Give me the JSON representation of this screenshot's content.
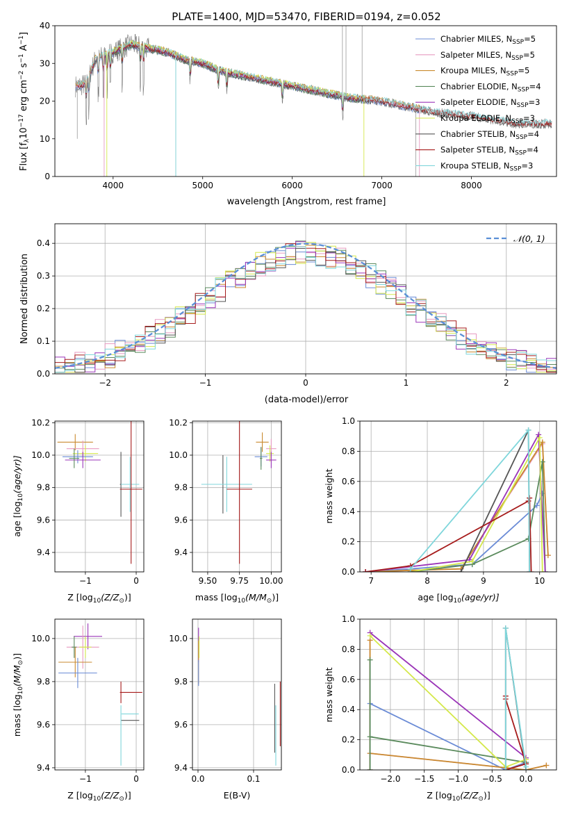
{
  "figure_title": "PLATE=1400, MJD=53470, FIBERID=0194, z=0.052",
  "palette": {
    "Chabrier MILES": "#6a8bd6",
    "Salpeter MILES": "#e79ac0",
    "Kroupa MILES": "#c98a2e",
    "Chabrier ELODIE": "#5a8a5c",
    "Salpeter ELODIE": "#9a34b8",
    "Kroupa ELODIE": "#d4e84a",
    "Chabrier STELIB": "#555555",
    "Salpeter STELIB": "#a61b1b",
    "Kroupa STELIB": "#7fd6db",
    "orange": "#e07b28",
    "normal": "#5a8fd6"
  },
  "chart_data": [
    {
      "id": "spectrum",
      "type": "line",
      "title": "",
      "xlabel": "wavelength [Angstrom, rest frame]",
      "ylabel": "Flux [f",
      "ylabel_sub": "λ",
      "ylabel_rest": "10",
      "ylabel_exp": "−17",
      "ylabel_tail": " erg cm",
      "ylabel_exp2": "−2",
      "ylabel_tail2": " s",
      "ylabel_exp3": "−1",
      "ylabel_tail3": " A",
      "ylabel_exp4": "−1",
      "ylabel_end": "]",
      "xlim": [
        3350,
        8950
      ],
      "ylim": [
        0,
        40
      ],
      "xticks": [
        4000,
        5000,
        6000,
        7000,
        8000
      ],
      "yticks": [
        0,
        10,
        20,
        30,
        40
      ],
      "grid": false,
      "legend_position": "top-right",
      "series": [
        {
          "name": "Chabrier MILES, N",
          "sub": "SSP",
          "tail": "=5",
          "color_key": "Chabrier MILES"
        },
        {
          "name": "Salpeter MILES, N",
          "sub": "SSP",
          "tail": "=5",
          "color_key": "Salpeter MILES"
        },
        {
          "name": "Kroupa MILES, N",
          "sub": "SSP",
          "tail": "=5",
          "color_key": "Kroupa MILES"
        },
        {
          "name": "Chabrier ELODIE, N",
          "sub": "SSP",
          "tail": "=4",
          "color_key": "Chabrier ELODIE"
        },
        {
          "name": "Salpeter ELODIE, N",
          "sub": "SSP",
          "tail": "=3",
          "color_key": "Salpeter ELODIE"
        },
        {
          "name": "Kroupa ELODIE, N",
          "sub": "SSP",
          "tail": "=3",
          "color_key": "Kroupa ELODIE"
        },
        {
          "name": "Chabrier STELIB, N",
          "sub": "SSP",
          "tail": "=4",
          "color_key": "Chabrier STELIB"
        },
        {
          "name": "Salpeter STELIB, N",
          "sub": "SSP",
          "tail": "=4",
          "color_key": "Salpeter STELIB"
        },
        {
          "name": "Kroupa STELIB, N",
          "sub": "SSP",
          "tail": "=3",
          "color_key": "Kroupa STELIB"
        }
      ],
      "continuum": [
        [
          3600,
          24
        ],
        [
          3700,
          24.5
        ],
        [
          3800,
          31
        ],
        [
          3900,
          32
        ],
        [
          4000,
          33
        ],
        [
          4100,
          34
        ],
        [
          4200,
          35
        ],
        [
          4400,
          34
        ],
        [
          4600,
          33
        ],
        [
          4800,
          31
        ],
        [
          5000,
          30
        ],
        [
          5200,
          28
        ],
        [
          5500,
          26.5
        ],
        [
          5800,
          25
        ],
        [
          6000,
          24
        ],
        [
          6300,
          22.5
        ],
        [
          6600,
          21
        ],
        [
          7000,
          20
        ],
        [
          7400,
          18
        ],
        [
          7600,
          17
        ],
        [
          8000,
          16
        ],
        [
          8500,
          14
        ]
      ],
      "model_ranges": {
        "MILES": [
          3580,
          7420
        ],
        "ELODIE": [
          3900,
          6800
        ],
        "STELIB": [
          3600,
          8900
        ]
      },
      "absorption_lines": [
        3700,
        3730,
        3835,
        3890,
        3934,
        3969,
        4102,
        4305,
        4340,
        4861,
        5175,
        5270,
        5890,
        6563
      ]
    },
    {
      "id": "residuals",
      "type": "bar",
      "title": "",
      "xlabel": "(data-model)/error",
      "ylabel": "Normed distribution",
      "xlim": [
        -2.5,
        2.5
      ],
      "ylim": [
        0,
        0.46
      ],
      "xticks": [
        -2,
        -1,
        0,
        1,
        2
      ],
      "yticks": [
        0.0,
        0.1,
        0.2,
        0.3,
        0.4
      ],
      "grid": true,
      "legend_position": "top-right",
      "legend_label": "𝒩(0, 1)",
      "bin_width": 0.1,
      "bin_start": -2.5,
      "series_colors": [
        "Chabrier MILES",
        "Salpeter MILES",
        "Kroupa MILES",
        "Chabrier ELODIE",
        "Salpeter ELODIE",
        "Kroupa ELODIE",
        "Chabrier STELIB",
        "Salpeter STELIB",
        "Kroupa STELIB"
      ]
    },
    {
      "id": "age_vs_Z",
      "type": "scatter",
      "xlabel": "Z [log",
      "xlabel_sub": "10",
      "xlabel_mid": "(Z/Z",
      "xlabel_sub2": "⊙",
      "xlabel_end": ")]",
      "ylabel": "age  [log",
      "ylabel_sub": "10",
      "ylabel_end": "(age/yr)]",
      "xlim": [
        -1.6,
        0.15
      ],
      "ylim": [
        9.28,
        10.21
      ],
      "xticks": [
        -1,
        0
      ],
      "yticks": [
        9.4,
        9.6,
        9.8,
        10.0,
        10.2
      ],
      "grid": true,
      "points": [
        {
          "c": "Kroupa MILES",
          "x": -1.2,
          "y": 10.08,
          "xe": 0.35,
          "ye": 0.05
        },
        {
          "c": "Salpeter MILES",
          "x": -1.05,
          "y": 10.04,
          "xe": 0.32,
          "ye": 0.05
        },
        {
          "c": "Kroupa ELODIE",
          "x": -1.0,
          "y": 10.01,
          "xe": 0.25,
          "ye": 0.05
        },
        {
          "c": "Chabrier MILES",
          "x": -1.15,
          "y": 9.99,
          "xe": 0.3,
          "ye": 0.04
        },
        {
          "c": "Salpeter ELODIE",
          "x": -1.05,
          "y": 9.97,
          "xe": 0.35,
          "ye": 0.05
        },
        {
          "c": "Chabrier ELODIE",
          "x": -1.22,
          "y": 9.98,
          "xe": 0.1,
          "ye": 0.06
        },
        {
          "c": "Chabrier STELIB",
          "x": -0.3,
          "y": 9.82,
          "xe": 0.02,
          "ye": 0.2
        },
        {
          "c": "Kroupa STELIB",
          "x": -0.12,
          "y": 9.82,
          "xe": 0.18,
          "ye": 0.17
        },
        {
          "c": "Salpeter STELIB",
          "x": -0.1,
          "y": 9.79,
          "xe": 0.22,
          "ye": 0.46
        }
      ]
    },
    {
      "id": "age_vs_mass",
      "type": "scatter",
      "xlabel": "mass [log",
      "xlabel_sub": "10",
      "xlabel_mid": "(M/M",
      "xlabel_sub2": "⊙",
      "xlabel_end": ")]",
      "xlim": [
        9.38,
        10.08
      ],
      "ylim": [
        9.28,
        10.21
      ],
      "xticks": [
        9.5,
        9.75,
        10.0
      ],
      "xtick_labels": [
        "9.50",
        "9.75",
        "10.00"
      ],
      "yticks": [
        9.4,
        9.6,
        9.8,
        10.0,
        10.2
      ],
      "grid": true,
      "points": [
        {
          "c": "Kroupa MILES",
          "x": 9.93,
          "y": 10.08,
          "xe": 0.05,
          "ye": 0.06
        },
        {
          "c": "Salpeter MILES",
          "x": 10.0,
          "y": 10.04,
          "xe": 0.04,
          "ye": 0.06
        },
        {
          "c": "Kroupa ELODIE",
          "x": 9.99,
          "y": 10.01,
          "xe": 0.03,
          "ye": 0.05
        },
        {
          "c": "Chabrier MILES",
          "x": 9.92,
          "y": 9.99,
          "xe": 0.05,
          "ye": 0.06
        },
        {
          "c": "Salpeter ELODIE",
          "x": 10.0,
          "y": 9.97,
          "xe": 0.04,
          "ye": 0.05
        },
        {
          "c": "Chabrier ELODIE",
          "x": 9.92,
          "y": 9.98,
          "xe": 0.01,
          "ye": 0.07
        },
        {
          "c": "Chabrier STELIB",
          "x": 9.62,
          "y": 9.82,
          "xe": 0.14,
          "ye": 0.18
        },
        {
          "c": "Kroupa STELIB",
          "x": 9.65,
          "y": 9.82,
          "xe": 0.2,
          "ye": 0.17
        },
        {
          "c": "Salpeter STELIB",
          "x": 9.75,
          "y": 9.79,
          "xe": 0.1,
          "ye": 0.46
        }
      ]
    },
    {
      "id": "mw_vs_age",
      "type": "line",
      "xlabel": "age  [log",
      "xlabel_sub": "10",
      "xlabel_end": "(age/yr)]",
      "ylabel": "mass weight",
      "xlim": [
        6.8,
        10.3
      ],
      "ylim": [
        0,
        1.0
      ],
      "xticks": [
        7,
        8,
        9,
        10
      ],
      "yticks": [
        0.0,
        0.2,
        0.4,
        0.6,
        0.8,
        1.0
      ],
      "grid": true,
      "series": [
        {
          "c": "Chabrier MILES",
          "pts": [
            [
              6.9,
              0.0
            ],
            [
              7.7,
              0.02
            ],
            [
              8.8,
              0.05
            ],
            [
              9.95,
              0.44
            ],
            [
              10.05,
              0.52
            ]
          ]
        },
        {
          "c": "Salpeter MILES",
          "pts": [
            [
              6.9,
              0.0
            ],
            [
              7.7,
              0.01
            ],
            [
              8.6,
              0.02
            ],
            [
              10.05,
              0.85
            ],
            [
              10.15,
              0.11
            ]
          ]
        },
        {
          "c": "Kroupa MILES",
          "pts": [
            [
              6.9,
              0.0
            ],
            [
              7.7,
              0.01
            ],
            [
              8.6,
              0.02
            ],
            [
              10.05,
              0.86
            ],
            [
              10.15,
              0.11
            ]
          ]
        },
        {
          "c": "Chabrier ELODIE",
          "pts": [
            [
              7.7,
              0.0
            ],
            [
              8.8,
              0.05
            ],
            [
              9.8,
              0.22
            ],
            [
              10.05,
              0.73
            ],
            [
              10.1,
              0.0
            ]
          ]
        },
        {
          "c": "Salpeter ELODIE",
          "pts": [
            [
              6.9,
              0.0
            ],
            [
              8.75,
              0.08
            ],
            [
              9.98,
              0.91
            ],
            [
              10.1,
              0.0
            ]
          ]
        },
        {
          "c": "Kroupa ELODIE",
          "pts": [
            [
              7.7,
              0.0
            ],
            [
              8.8,
              0.07
            ],
            [
              10.0,
              0.89
            ],
            [
              10.05,
              0.0
            ]
          ]
        },
        {
          "c": "Chabrier STELIB",
          "pts": [
            [
              7.7,
              0.0
            ],
            [
              8.6,
              0.0
            ],
            [
              9.8,
              0.94
            ],
            [
              9.82,
              0.0
            ]
          ]
        },
        {
          "c": "Salpeter STELIB",
          "pts": [
            [
              6.9,
              0.0
            ],
            [
              7.7,
              0.04
            ],
            [
              9.8,
              0.47
            ],
            [
              9.82,
              0.49
            ],
            [
              9.85,
              0.0
            ]
          ]
        },
        {
          "c": "Kroupa STELIB",
          "pts": [
            [
              7.7,
              0.02
            ],
            [
              9.8,
              0.94
            ],
            [
              9.82,
              0.0
            ]
          ]
        }
      ]
    },
    {
      "id": "mass_vs_Z",
      "type": "scatter",
      "xlabel": "Z [log",
      "xlabel_sub": "10",
      "xlabel_mid": "(Z/Z",
      "xlabel_sub2": "⊙",
      "xlabel_end": ")]",
      "ylabel": "mass [log",
      "ylabel_sub": "10",
      "ylabel_mid": "(M/M",
      "ylabel_sub2": "⊙",
      "ylabel_end": ")]",
      "xlim": [
        -1.6,
        0.15
      ],
      "ylim": [
        9.39,
        10.09
      ],
      "xticks": [
        -1,
        0
      ],
      "yticks": [
        9.4,
        9.6,
        9.8,
        10.0
      ],
      "grid": true,
      "points": [
        {
          "c": "Salpeter ELODIE",
          "x": -0.95,
          "y": 10.01,
          "xe": 0.28,
          "ye": 0.06
        },
        {
          "c": "Salpeter MILES",
          "x": -1.05,
          "y": 9.96,
          "xe": 0.32,
          "ye": 0.1
        },
        {
          "c": "Kroupa ELODIE",
          "x": -1.0,
          "y": 9.96,
          "xe": 0.12,
          "ye": 0.05
        },
        {
          "c": "Chabrier ELODIE",
          "x": -1.22,
          "y": 9.96,
          "xe": 0.05,
          "ye": 0.05
        },
        {
          "c": "Kroupa MILES",
          "x": -1.2,
          "y": 9.89,
          "xe": 0.33,
          "ye": 0.07
        },
        {
          "c": "Chabrier MILES",
          "x": -1.15,
          "y": 9.84,
          "xe": 0.38,
          "ye": 0.07
        },
        {
          "c": "Salpeter STELIB",
          "x": -0.3,
          "y": 9.75,
          "xe": 0.0,
          "ye": 0.05
        },
        {
          "c": "Salpeter STELIB",
          "x": -0.1,
          "y": 9.75,
          "xe": 0.22,
          "ye": 0.0
        },
        {
          "c": "Kroupa STELIB",
          "x": -0.12,
          "y": 9.65,
          "xe": 0.17,
          "ye": 0.0
        },
        {
          "c": "Chabrier STELIB",
          "x": -0.12,
          "y": 9.62,
          "xe": 0.18,
          "ye": 0.0
        },
        {
          "c": "Kroupa STELIB",
          "x": -0.3,
          "y": 9.55,
          "xe": 0.0,
          "ye": 0.14
        }
      ]
    },
    {
      "id": "mass_vs_ebv",
      "type": "scatter",
      "xlabel": "E(B-V)",
      "xlim": [
        -0.01,
        0.15
      ],
      "ylim": [
        9.39,
        10.09
      ],
      "xticks": [
        0.0,
        0.1
      ],
      "yticks": [
        9.4,
        9.6,
        9.8,
        10.0
      ],
      "grid": true,
      "points": [
        {
          "c": "Salpeter ELODIE",
          "x": 0.001,
          "y": 9.97,
          "xe": 0.0,
          "ye": 0.08
        },
        {
          "c": "Kroupa MILES",
          "x": 0.001,
          "y": 9.89,
          "xe": 0.0,
          "ye": 0.1
        },
        {
          "c": "Chabrier MILES",
          "x": 0.001,
          "y": 9.84,
          "xe": 0.0,
          "ye": 0.06
        },
        {
          "c": "Kroupa ELODIE",
          "x": 0.002,
          "y": 9.96,
          "xe": 0.0,
          "ye": 0.05
        },
        {
          "c": "Chabrier STELIB",
          "x": 0.138,
          "y": 9.63,
          "xe": 0.0,
          "ye": 0.16
        },
        {
          "c": "Kroupa STELIB",
          "x": 0.14,
          "y": 9.55,
          "xe": 0.0,
          "ye": 0.14
        },
        {
          "c": "Salpeter STELIB",
          "x": 0.148,
          "y": 9.65,
          "xe": 0.0,
          "ye": 0.15
        }
      ]
    },
    {
      "id": "mw_vs_Z",
      "type": "line",
      "xlabel": "Z [log",
      "xlabel_sub": "10",
      "xlabel_mid": "(Z/Z",
      "xlabel_sub2": "⊙",
      "xlabel_end": ")]",
      "ylabel": "mass weight",
      "xlim": [
        -2.45,
        0.45
      ],
      "ylim": [
        0,
        1.0
      ],
      "xticks": [
        -2.0,
        -1.5,
        -1.0,
        -0.5,
        0.0
      ],
      "yticks": [
        0.0,
        0.2,
        0.4,
        0.6,
        0.8,
        1.0
      ],
      "grid": true,
      "series": [
        {
          "c": "Chabrier MILES",
          "pts": [
            [
              -2.3,
              0.0
            ],
            [
              -2.3,
              0.44
            ],
            [
              -0.3,
              0.0
            ],
            [
              0.0,
              0.05
            ],
            [
              0.0,
              0.0
            ]
          ]
        },
        {
          "c": "Salpeter MILES",
          "pts": [
            [
              -2.3,
              0.0
            ],
            [
              -2.3,
              0.86
            ],
            [
              -2.3,
              0.11
            ],
            [
              0.0,
              0.0
            ],
            [
              0.3,
              0.03
            ]
          ]
        },
        {
          "c": "Kroupa MILES",
          "pts": [
            [
              -2.3,
              0.0
            ],
            [
              -2.3,
              0.86
            ],
            [
              -2.3,
              0.11
            ],
            [
              0.0,
              0.0
            ],
            [
              0.3,
              0.03
            ]
          ]
        },
        {
          "c": "Chabrier ELODIE",
          "pts": [
            [
              -2.3,
              0.0
            ],
            [
              -2.3,
              0.73
            ],
            [
              -2.3,
              0.22
            ],
            [
              0.0,
              0.05
            ],
            [
              0.0,
              0.0
            ]
          ]
        },
        {
          "c": "Salpeter ELODIE",
          "pts": [
            [
              -2.3,
              0.91
            ],
            [
              0.0,
              0.08
            ],
            [
              0.0,
              0.0
            ]
          ]
        },
        {
          "c": "Kroupa ELODIE",
          "pts": [
            [
              -2.3,
              0.89
            ],
            [
              -0.3,
              0.02
            ],
            [
              0.0,
              0.07
            ],
            [
              0.0,
              0.0
            ]
          ]
        },
        {
          "c": "Chabrier STELIB",
          "pts": [
            [
              -0.3,
              0.0
            ],
            [
              -0.3,
              0.94
            ],
            [
              0.0,
              0.0
            ]
          ]
        },
        {
          "c": "Salpeter STELIB",
          "pts": [
            [
              -0.3,
              0.49
            ],
            [
              -0.3,
              0.47
            ],
            [
              0.0,
              0.04
            ],
            [
              -0.3,
              0.0
            ]
          ]
        },
        {
          "c": "Kroupa STELIB",
          "pts": [
            [
              -0.3,
              0.0
            ],
            [
              -0.3,
              0.94
            ],
            [
              0.0,
              0.02
            ]
          ]
        }
      ]
    }
  ]
}
